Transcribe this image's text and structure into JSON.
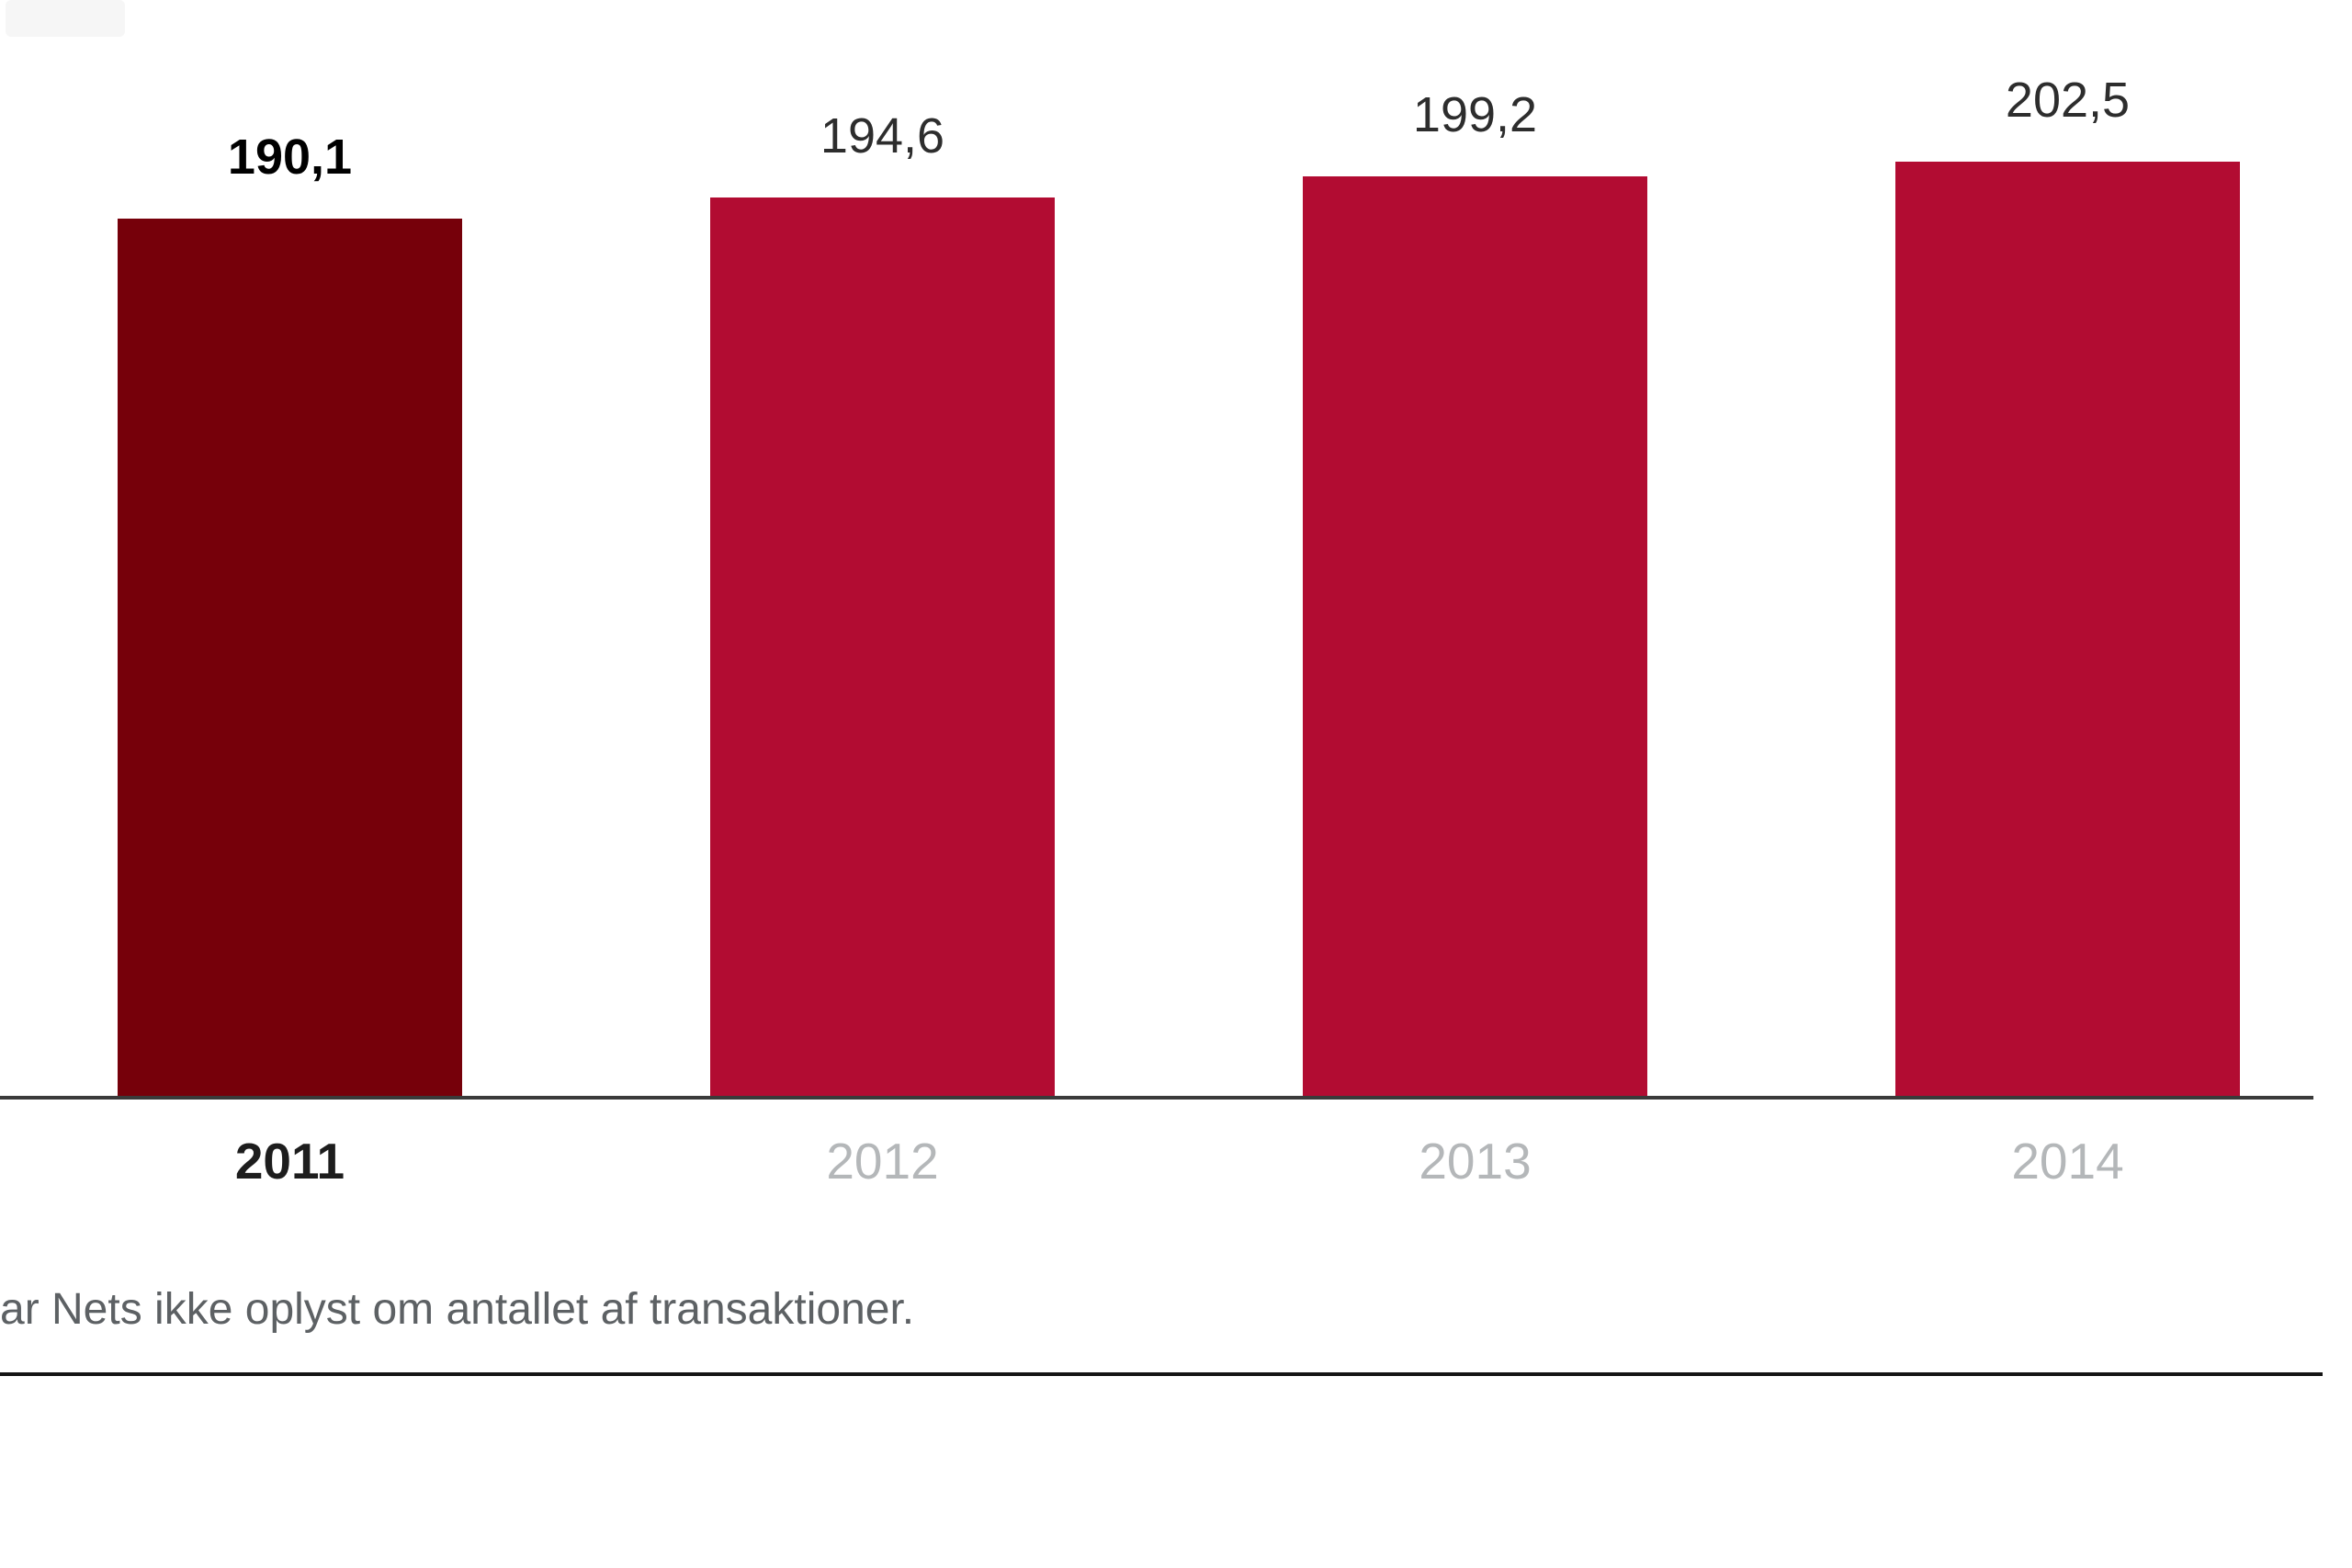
{
  "chart_data": {
    "type": "bar",
    "categories": [
      "2011",
      "2012",
      "2013",
      "2014"
    ],
    "values": [
      190.1,
      194.6,
      199.2,
      202.5
    ],
    "value_labels": [
      "190,1",
      "194,6",
      "199,2",
      "202,5"
    ],
    "highlighted_category": "2011",
    "title": "",
    "xlabel": "",
    "ylabel": "",
    "ylim": [
      0,
      237.5
    ],
    "grid": false,
    "legend": "none",
    "bar_colors": [
      "#76000A",
      "#B20C32",
      "#B20C32",
      "#B20C32"
    ],
    "axis_line_color": "#3a3a3a"
  },
  "footnote": {
    "text": "ar Nets ikke oplyst om antallet af transaktioner."
  },
  "colors": {
    "highlight_bar": "#76000A",
    "default_bar": "#B20C32",
    "axis_line": "#3a3a3a",
    "separator_line": "#141414",
    "muted_year_label": "#b4b7b9",
    "footnote_text": "#5d6164"
  }
}
